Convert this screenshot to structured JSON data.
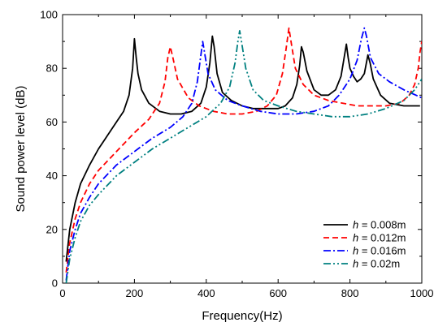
{
  "chart_data": {
    "type": "line",
    "title": "",
    "xlabel": "Frequency(Hz)",
    "ylabel": "Sound power level (dB)",
    "xlim": [
      0,
      1000
    ],
    "ylim": [
      0,
      100
    ],
    "x_ticks": [
      "0",
      "200",
      "400",
      "600",
      "800",
      "1000"
    ],
    "y_ticks": [
      "0",
      "20",
      "40",
      "60",
      "80",
      "100"
    ],
    "grid": false,
    "legend_position": "bottom-right",
    "series": [
      {
        "name": "h = 0.008m",
        "legend_var": "h",
        "legend_rest": " = 0.008m",
        "color": "#000000",
        "dash": "solid",
        "points": [
          [
            10,
            8
          ],
          [
            20,
            20
          ],
          [
            35,
            30
          ],
          [
            50,
            37
          ],
          [
            75,
            44
          ],
          [
            100,
            50
          ],
          [
            125,
            55
          ],
          [
            150,
            60
          ],
          [
            170,
            64
          ],
          [
            185,
            70
          ],
          [
            195,
            80
          ],
          [
            200,
            91
          ],
          [
            205,
            84
          ],
          [
            210,
            78
          ],
          [
            220,
            72
          ],
          [
            240,
            67
          ],
          [
            270,
            64
          ],
          [
            300,
            63
          ],
          [
            330,
            63
          ],
          [
            360,
            64
          ],
          [
            385,
            67
          ],
          [
            400,
            73
          ],
          [
            410,
            82
          ],
          [
            417,
            92
          ],
          [
            422,
            88
          ],
          [
            430,
            78
          ],
          [
            445,
            71
          ],
          [
            470,
            68
          ],
          [
            500,
            66
          ],
          [
            530,
            65
          ],
          [
            570,
            65
          ],
          [
            600,
            65
          ],
          [
            620,
            66
          ],
          [
            640,
            69
          ],
          [
            652,
            74
          ],
          [
            660,
            81
          ],
          [
            665,
            88
          ],
          [
            670,
            86
          ],
          [
            680,
            79
          ],
          [
            700,
            72
          ],
          [
            720,
            70
          ],
          [
            740,
            70
          ],
          [
            760,
            72
          ],
          [
            775,
            77
          ],
          [
            785,
            85
          ],
          [
            790,
            89
          ],
          [
            795,
            84
          ],
          [
            800,
            80
          ],
          [
            810,
            77
          ],
          [
            820,
            75
          ],
          [
            830,
            76
          ],
          [
            840,
            78
          ],
          [
            850,
            85
          ],
          [
            856,
            82
          ],
          [
            865,
            76
          ],
          [
            885,
            70
          ],
          [
            910,
            67
          ],
          [
            950,
            66
          ],
          [
            980,
            66
          ],
          [
            995,
            66
          ]
        ]
      },
      {
        "name": "h = 0.012m",
        "legend_var": "h",
        "legend_rest": " = 0.012m",
        "color": "#ff0000",
        "dash": "7,4",
        "points": [
          [
            10,
            4
          ],
          [
            20,
            15
          ],
          [
            35,
            24
          ],
          [
            50,
            30
          ],
          [
            75,
            37
          ],
          [
            100,
            42
          ],
          [
            150,
            49
          ],
          [
            200,
            56
          ],
          [
            240,
            61
          ],
          [
            270,
            67
          ],
          [
            285,
            75
          ],
          [
            293,
            84
          ],
          [
            300,
            88
          ],
          [
            307,
            84
          ],
          [
            320,
            76
          ],
          [
            350,
            69
          ],
          [
            380,
            66
          ],
          [
            420,
            64
          ],
          [
            460,
            63
          ],
          [
            500,
            63
          ],
          [
            540,
            64
          ],
          [
            570,
            66
          ],
          [
            595,
            70
          ],
          [
            612,
            78
          ],
          [
            622,
            87
          ],
          [
            630,
            95
          ],
          [
            637,
            89
          ],
          [
            648,
            80
          ],
          [
            670,
            74
          ],
          [
            700,
            70
          ],
          [
            740,
            68
          ],
          [
            780,
            67
          ],
          [
            820,
            66
          ],
          [
            860,
            66
          ],
          [
            900,
            66
          ],
          [
            940,
            67
          ],
          [
            965,
            70
          ],
          [
            980,
            74
          ],
          [
            990,
            80
          ],
          [
            995,
            86
          ],
          [
            1000,
            90
          ]
        ]
      },
      {
        "name": "h = 0.016m",
        "legend_var": "h",
        "legend_rest": " = 0.016m",
        "color": "#0000ff",
        "dash": "9,3,2,3",
        "points": [
          [
            10,
            1
          ],
          [
            20,
            12
          ],
          [
            35,
            20
          ],
          [
            50,
            26
          ],
          [
            75,
            32
          ],
          [
            100,
            37
          ],
          [
            150,
            44
          ],
          [
            200,
            49
          ],
          [
            250,
            54
          ],
          [
            300,
            58
          ],
          [
            335,
            62
          ],
          [
            360,
            67
          ],
          [
            375,
            75
          ],
          [
            385,
            85
          ],
          [
            390,
            90
          ],
          [
            395,
            86
          ],
          [
            405,
            78
          ],
          [
            425,
            72
          ],
          [
            460,
            68
          ],
          [
            500,
            66
          ],
          [
            550,
            64
          ],
          [
            600,
            63
          ],
          [
            650,
            63
          ],
          [
            700,
            64
          ],
          [
            740,
            66
          ],
          [
            770,
            70
          ],
          [
            800,
            76
          ],
          [
            820,
            83
          ],
          [
            832,
            91
          ],
          [
            840,
            95
          ],
          [
            846,
            92
          ],
          [
            857,
            84
          ],
          [
            880,
            78
          ],
          [
            910,
            75
          ],
          [
            950,
            72
          ],
          [
            1000,
            69
          ]
        ]
      },
      {
        "name": "h = 0.02m",
        "legend_var": "h",
        "legend_rest": " = 0.02m",
        "color": "#008080",
        "dash": "9,3,2,3,2,3",
        "points": [
          [
            10,
            0
          ],
          [
            20,
            9
          ],
          [
            35,
            17
          ],
          [
            50,
            23
          ],
          [
            75,
            29
          ],
          [
            100,
            33
          ],
          [
            150,
            40
          ],
          [
            200,
            45
          ],
          [
            250,
            50
          ],
          [
            300,
            54
          ],
          [
            350,
            58
          ],
          [
            400,
            62
          ],
          [
            440,
            67
          ],
          [
            465,
            73
          ],
          [
            480,
            82
          ],
          [
            488,
            90
          ],
          [
            493,
            94
          ],
          [
            498,
            90
          ],
          [
            510,
            80
          ],
          [
            530,
            72
          ],
          [
            560,
            68
          ],
          [
            600,
            66
          ],
          [
            650,
            64
          ],
          [
            700,
            63
          ],
          [
            750,
            62
          ],
          [
            800,
            62
          ],
          [
            850,
            63
          ],
          [
            900,
            65
          ],
          [
            950,
            68
          ],
          [
            980,
            72
          ],
          [
            1000,
            76
          ]
        ]
      }
    ]
  }
}
